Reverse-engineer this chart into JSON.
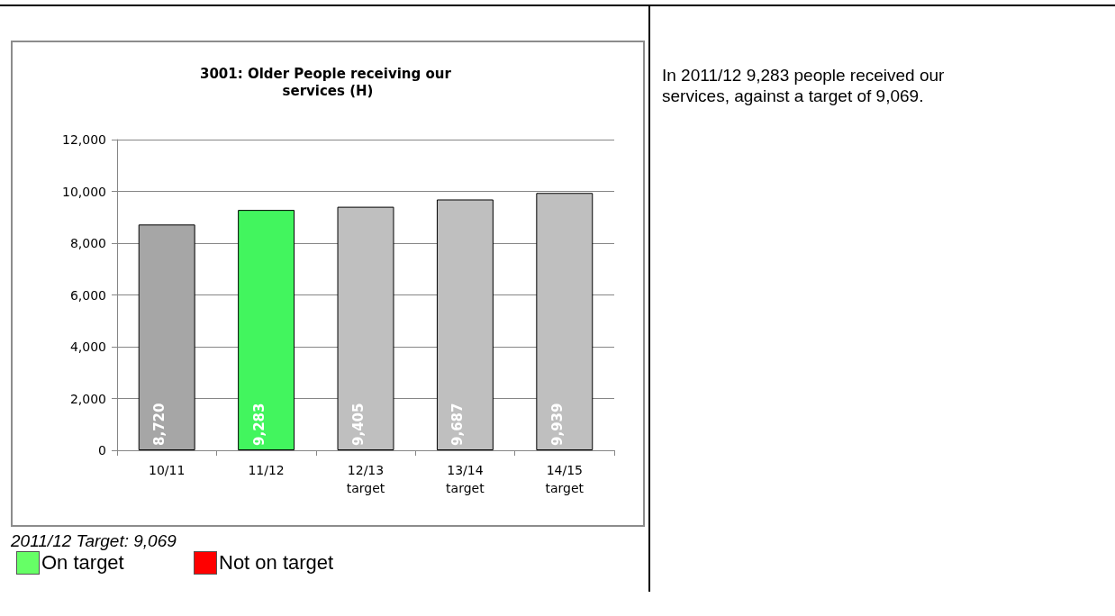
{
  "chart_data": {
    "type": "bar",
    "title": "3001: Older People receiving our services (H)",
    "categories": [
      "10/11",
      "11/12",
      "12/13 target",
      "13/14 target",
      "14/15 target"
    ],
    "values": [
      8720,
      9283,
      9405,
      9687,
      9939
    ],
    "value_labels": [
      "8,720",
      "9,283",
      "9,405",
      "9,687",
      "9,939"
    ],
    "colors": [
      "#a6a6a6",
      "#42f55e",
      "#bfbfbf",
      "#bfbfbf",
      "#bfbfbf"
    ],
    "ylim": [
      0,
      12000
    ],
    "yticks": [
      0,
      {
        "value": 2000,
        "label": "2,000"
      },
      {
        "value": 4000,
        "label": "4,000"
      },
      {
        "value": 6000,
        "label": "6,000"
      },
      {
        "value": 8000,
        "label": "8,000"
      },
      {
        "value": 10000,
        "label": "10,000"
      },
      {
        "value": 12000,
        "label": "12,000"
      }
    ],
    "grid": "y",
    "annotations": [
      "2011/12 Target: 9,069",
      "On target",
      "Not on target",
      "In 2011/12 9,283 people received our services, against a target of 9,069."
    ]
  }
}
